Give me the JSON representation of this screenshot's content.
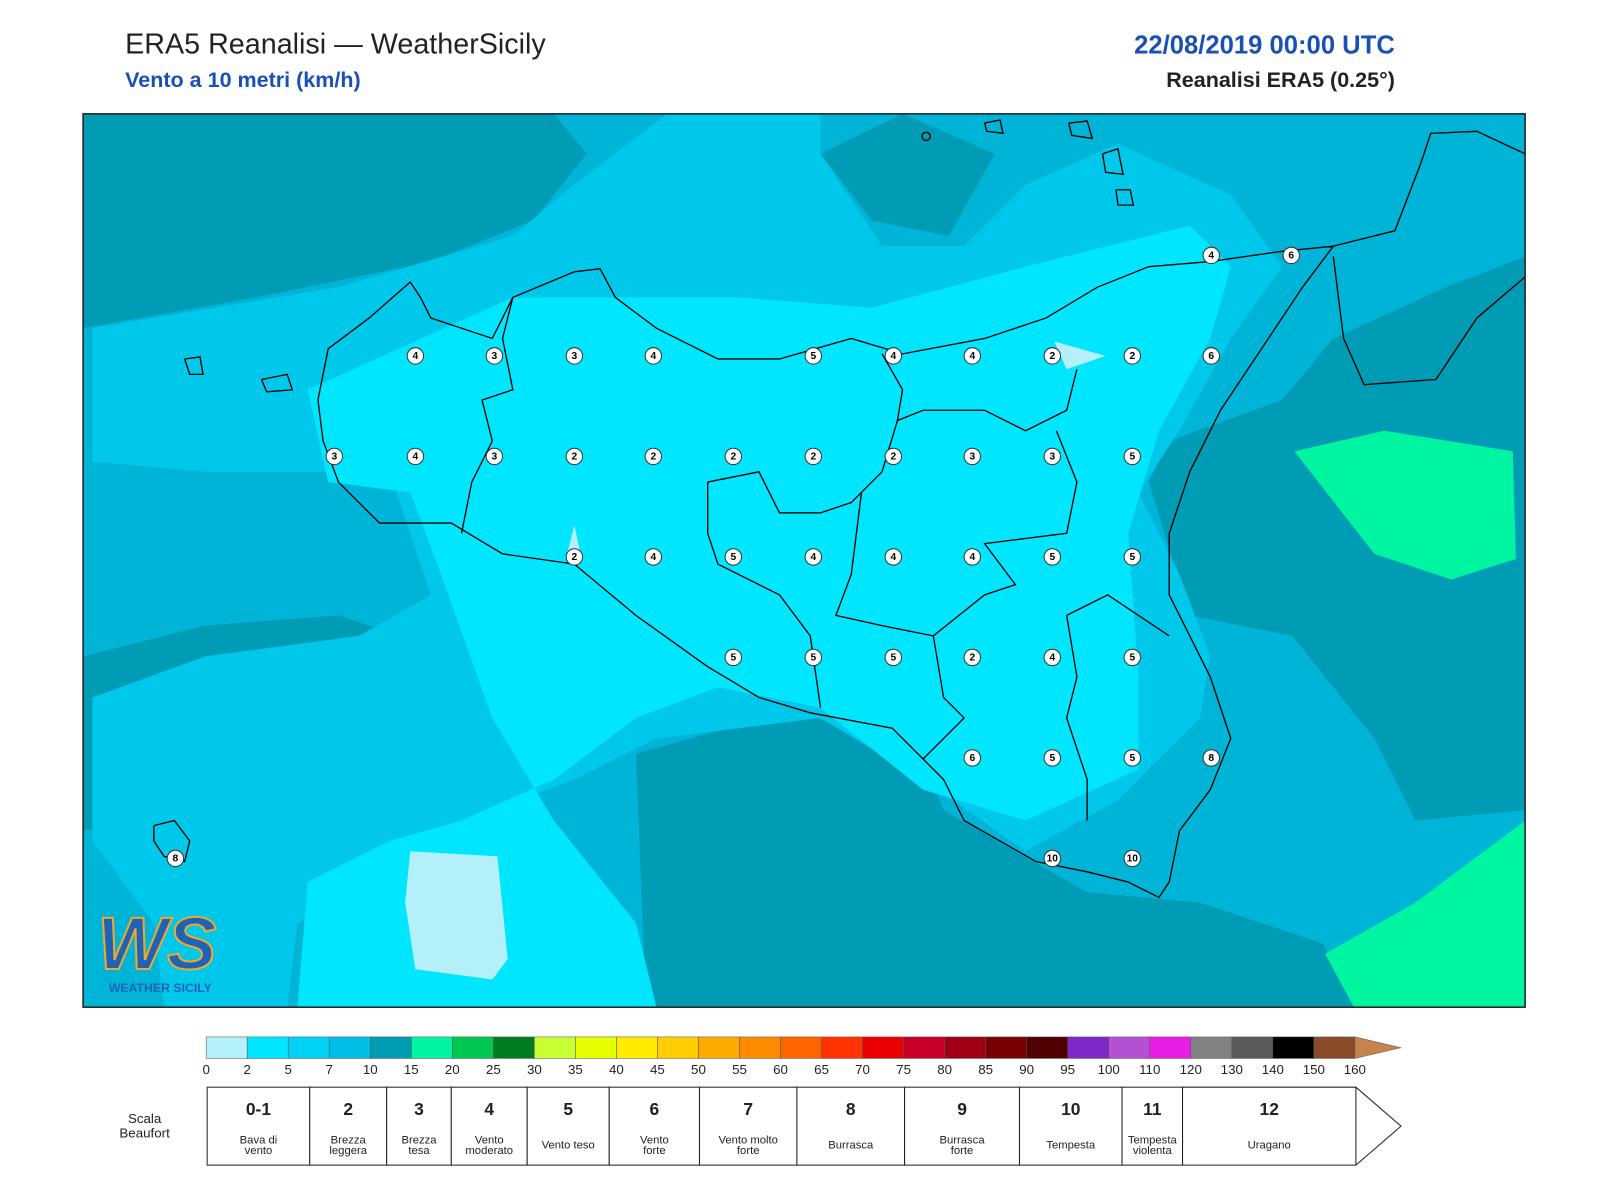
{
  "header": {
    "title": "ERA5 Reanalisi — WeatherSicily",
    "subtitle": "Vento a 10 metri (km/h)",
    "datetime": "22/08/2019 00:00 UTC",
    "source": "Reanalisi ERA5 (0.25°)"
  },
  "map": {
    "wind_speeds": [
      4,
      6,
      4,
      3,
      3,
      4,
      5,
      4,
      4,
      2,
      2,
      6,
      3,
      4,
      3,
      2,
      2,
      2,
      2,
      2,
      3,
      3,
      5,
      2,
      4,
      5,
      4,
      4,
      4,
      5,
      5,
      5,
      5,
      5,
      2,
      4,
      5,
      6,
      5,
      5,
      8,
      8,
      10,
      10
    ]
  },
  "logo": {
    "mark": "WS",
    "text": "WEATHER SICILY"
  },
  "colorbar": {
    "ticks": [
      0,
      2,
      5,
      7,
      10,
      15,
      20,
      25,
      30,
      35,
      40,
      45,
      50,
      55,
      60,
      65,
      70,
      75,
      80,
      85,
      90,
      95,
      100,
      110,
      120,
      130,
      140,
      150,
      160
    ],
    "colors": [
      "#b4f0fa",
      "#00e6ff",
      "#00d2f5",
      "#00bee6",
      "#009bb4",
      "#00f5a0",
      "#00c850",
      "#007d1e",
      "#c8ff32",
      "#e6ff00",
      "#ffeb00",
      "#ffcd00",
      "#ffaa00",
      "#ff8c00",
      "#ff6400",
      "#ff3200",
      "#eb0000",
      "#c80028",
      "#a00014",
      "#780000",
      "#500000",
      "#7d28c8",
      "#b450d2",
      "#e61ee6",
      "#828282",
      "#5a5a5a",
      "#000000",
      "#8c4b28"
    ],
    "extend_color": "#c8824b"
  },
  "beaufort": {
    "label": [
      "Scala",
      "Beaufort"
    ],
    "levels": [
      {
        "number": "0-1",
        "name": [
          "Bava di",
          "vento"
        ]
      },
      {
        "number": 2,
        "name": [
          "Brezza",
          "leggera"
        ]
      },
      {
        "number": 3,
        "name": [
          "Brezza",
          "tesa"
        ]
      },
      {
        "number": 4,
        "name": [
          "Vento",
          "moderato"
        ]
      },
      {
        "number": 5,
        "name": [
          "Vento teso"
        ]
      },
      {
        "number": 6,
        "name": [
          "Vento",
          "forte"
        ]
      },
      {
        "number": 7,
        "name": [
          "Vento molto",
          "forte"
        ]
      },
      {
        "number": 8,
        "name": [
          "Burrasca"
        ]
      },
      {
        "number": 9,
        "name": [
          "Burrasca",
          "forte"
        ]
      },
      {
        "number": 10,
        "name": [
          "Tempesta"
        ]
      },
      {
        "number": 11,
        "name": [
          "Tempesta",
          "violenta"
        ]
      },
      {
        "number": 12,
        "name": [
          "Uragano"
        ]
      }
    ]
  }
}
